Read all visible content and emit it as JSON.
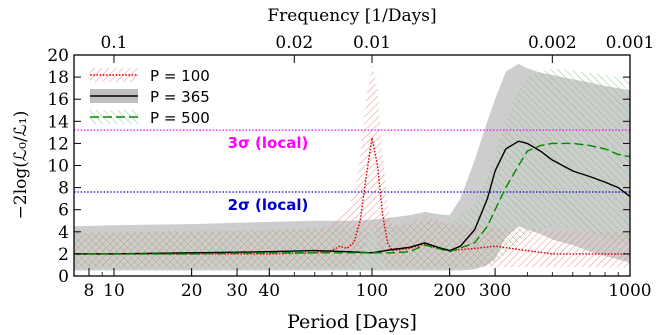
{
  "chart_data": {
    "type": "line",
    "xlabel": "Period [Days]",
    "ylabel": "−2log(ℒ₀/ℒ₁)",
    "top_axis_label": "Frequency [1/Days]",
    "x_scale": "log",
    "xlim": [
      7,
      1000
    ],
    "ylim": [
      0,
      20
    ],
    "x_ticks": [
      8,
      10,
      20,
      30,
      40,
      100,
      200,
      300,
      1000
    ],
    "x_tick_labels": [
      "8",
      "10",
      "20",
      "30",
      "40",
      "100",
      "200",
      "300",
      "1000"
    ],
    "y_ticks": [
      0,
      2,
      4,
      6,
      8,
      10,
      12,
      14,
      16,
      18,
      20
    ],
    "y_tick_labels": [
      "0",
      "2",
      "4",
      "6",
      "8",
      "10",
      "12",
      "14",
      "16",
      "18",
      "20"
    ],
    "top_ticks": [
      0.1,
      0.02,
      0.01,
      0.002,
      0.001
    ],
    "top_tick_labels": [
      "0.1",
      "0.02",
      "0.01",
      "0.002",
      "0.001"
    ],
    "legend_position": "top-left",
    "thresholds": [
      {
        "label": "3σ (local)",
        "value": 13.2,
        "color": "#ff00ff"
      },
      {
        "label": "2σ (local)",
        "value": 7.6,
        "color": "#0000cc"
      }
    ],
    "series": [
      {
        "name": "P = 100",
        "color": "#dd0000",
        "style": "dotted",
        "x": [
          7,
          10,
          20,
          40,
          60,
          70,
          75,
          80,
          85,
          90,
          95,
          100,
          105,
          110,
          115,
          120,
          140,
          160,
          180,
          200,
          250,
          300,
          400,
          500,
          700,
          1000
        ],
        "y": [
          2.0,
          2.0,
          2.0,
          2.0,
          2.1,
          2.3,
          2.7,
          2.5,
          3.0,
          5.0,
          9.0,
          12.5,
          10.0,
          5.5,
          3.0,
          2.3,
          2.5,
          2.9,
          2.5,
          2.3,
          2.5,
          2.7,
          2.3,
          2.0,
          2.0,
          2.0
        ],
        "band_upper": [
          3.9,
          3.9,
          4.0,
          4.1,
          4.3,
          4.6,
          5.5,
          6.0,
          7.5,
          11.0,
          16.0,
          19.3,
          17.0,
          11.0,
          6.5,
          4.5,
          4.8,
          5.5,
          5.0,
          4.7,
          4.5,
          4.4,
          4.2,
          4.1,
          4.0,
          4.0
        ],
        "band_lower": [
          0.8,
          0.8,
          0.8,
          0.8,
          0.8,
          0.8,
          0.8,
          0.8,
          1.0,
          1.5,
          3.0,
          5.0,
          3.0,
          1.2,
          0.8,
          0.8,
          0.8,
          0.8,
          0.8,
          0.8,
          0.8,
          0.8,
          0.8,
          0.8,
          0.8,
          0.8
        ]
      },
      {
        "name": "P = 365",
        "color": "#000000",
        "style": "solid",
        "x": [
          7,
          10,
          20,
          40,
          60,
          80,
          100,
          120,
          140,
          160,
          180,
          200,
          220,
          250,
          280,
          300,
          330,
          370,
          400,
          450,
          500,
          600,
          700,
          800,
          900,
          1000
        ],
        "y": [
          2.0,
          2.0,
          2.1,
          2.2,
          2.3,
          2.2,
          2.1,
          2.4,
          2.6,
          3.0,
          2.6,
          2.3,
          2.7,
          4.2,
          7.0,
          9.5,
          11.5,
          12.2,
          12.0,
          11.3,
          10.5,
          9.5,
          9.0,
          8.5,
          8.0,
          7.2
        ],
        "band_upper": [
          4.5,
          4.6,
          4.7,
          4.9,
          5.0,
          5.0,
          5.1,
          5.3,
          5.5,
          5.8,
          5.6,
          5.5,
          7.0,
          10.5,
          14.0,
          16.0,
          18.5,
          19.2,
          18.8,
          18.4,
          18.2,
          17.8,
          17.5,
          17.2,
          17.0,
          16.8
        ],
        "band_lower": [
          0.5,
          0.5,
          0.5,
          0.5,
          0.5,
          0.5,
          0.5,
          0.5,
          0.5,
          0.5,
          0.5,
          0.5,
          0.5,
          0.6,
          1.0,
          1.5,
          3.5,
          4.5,
          4.2,
          3.8,
          3.3,
          2.8,
          2.2,
          1.8,
          1.5,
          1.2
        ]
      },
      {
        "name": "P = 500",
        "color": "#008800",
        "style": "dashed",
        "x": [
          7,
          10,
          20,
          40,
          60,
          80,
          100,
          120,
          140,
          160,
          180,
          200,
          250,
          280,
          300,
          330,
          370,
          400,
          450,
          500,
          600,
          700,
          800,
          900,
          1000
        ],
        "y": [
          2.0,
          2.0,
          2.0,
          2.1,
          2.1,
          2.1,
          2.1,
          2.1,
          2.2,
          2.8,
          2.5,
          2.2,
          3.0,
          4.5,
          6.0,
          8.0,
          10.0,
          11.3,
          11.8,
          12.0,
          12.0,
          11.8,
          11.5,
          11.0,
          10.8
        ],
        "band_upper": [
          4.0,
          4.0,
          4.1,
          4.2,
          4.3,
          4.3,
          4.4,
          4.5,
          4.7,
          5.0,
          4.8,
          4.7,
          6.5,
          9.0,
          11.0,
          14.0,
          16.8,
          18.0,
          18.5,
          18.8,
          18.6,
          18.4,
          18.2,
          18.0,
          18.0
        ],
        "band_lower": [
          0.6,
          0.6,
          0.6,
          0.6,
          0.6,
          0.6,
          0.6,
          0.6,
          0.6,
          0.6,
          0.6,
          0.6,
          0.7,
          0.9,
          1.2,
          2.0,
          3.0,
          3.8,
          4.2,
          4.5,
          4.2,
          3.8,
          3.4,
          3.0,
          2.8
        ]
      }
    ]
  }
}
